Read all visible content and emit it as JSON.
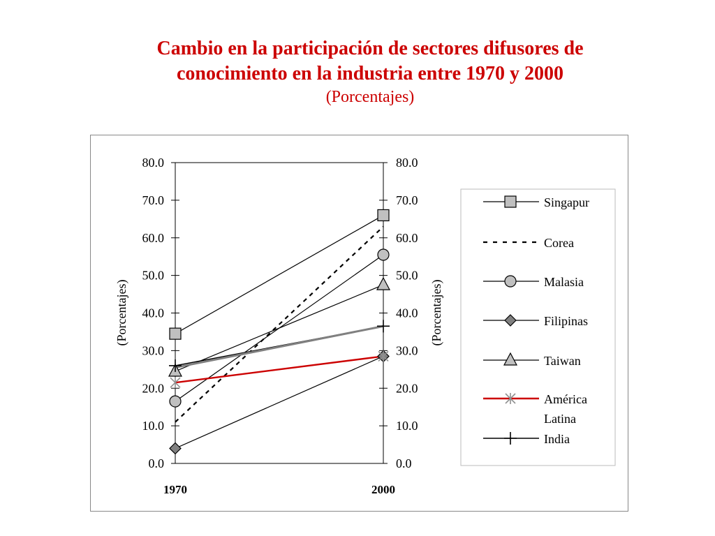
{
  "chart_data": {
    "type": "line",
    "title": "Cambio en la participación de sectores difusores de conocimiento en la industria entre 1970 y 2000",
    "subtitle": "(Porcentajes)",
    "categories": [
      "1970",
      "2000"
    ],
    "ylabel_left": "(Porcentajes)",
    "ylabel_right": "(Porcentajes)",
    "ylim": [
      0,
      80
    ],
    "yticks": [
      "0.0",
      "10.0",
      "20.0",
      "30.0",
      "40.0",
      "50.0",
      "60.0",
      "70.0",
      "80.0"
    ],
    "grid": false,
    "legend_position": "right",
    "series": [
      {
        "name": "Singapur",
        "values": [
          34.5,
          66.0
        ],
        "color": "#000000",
        "marker": "square",
        "dash": "solid"
      },
      {
        "name": "Corea",
        "values": [
          11.0,
          63.0
        ],
        "color": "#000000",
        "marker": "none",
        "dash": "dashed"
      },
      {
        "name": "Malasia",
        "values": [
          16.5,
          55.5
        ],
        "color": "#000000",
        "marker": "circle",
        "dash": "solid"
      },
      {
        "name": "Filipinas",
        "values": [
          4.0,
          28.5
        ],
        "color": "#000000",
        "marker": "diamond",
        "dash": "solid"
      },
      {
        "name": "Taiwan",
        "values": [
          24.5,
          47.5
        ],
        "color": "#000000",
        "marker": "triangle",
        "dash": "solid"
      },
      {
        "name": "América Latina",
        "values": [
          21.5,
          28.5
        ],
        "color": "#cc0000",
        "marker": "star",
        "dash": "solid"
      },
      {
        "name": "India",
        "values": [
          26.0,
          36.5
        ],
        "color": "#000000",
        "marker": "plus",
        "dash": "solid"
      },
      {
        "name": "",
        "values": [
          25.5,
          36.5
        ],
        "color": "#808080",
        "marker": "none",
        "dash": "solid"
      }
    ]
  }
}
